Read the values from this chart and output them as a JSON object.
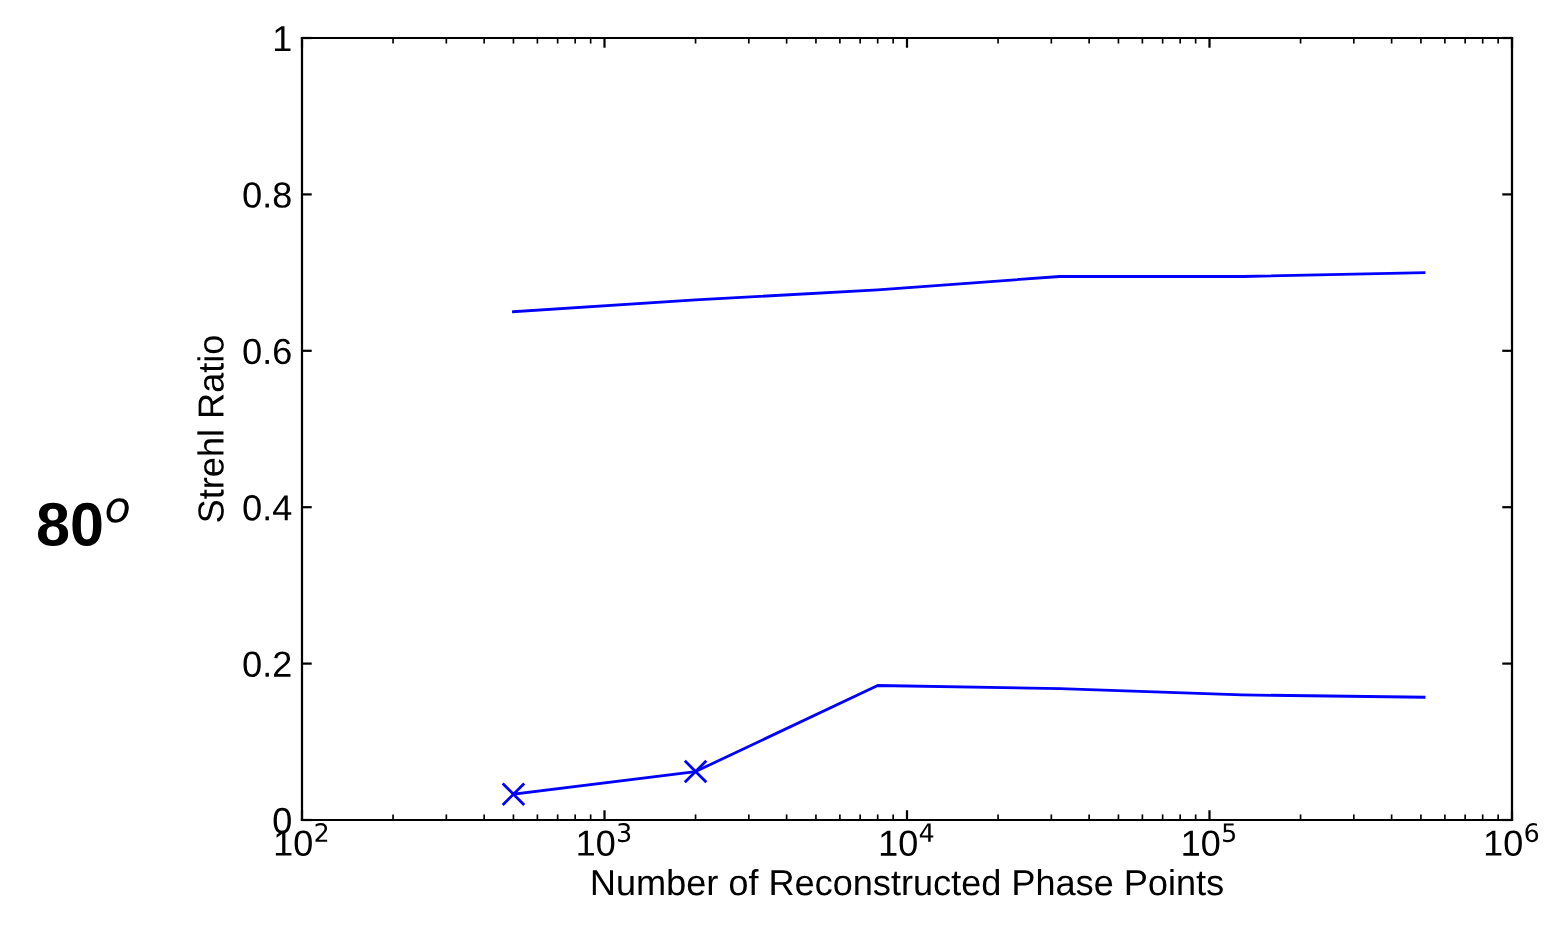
{
  "chart_data": {
    "type": "line",
    "xlabel": "Number of Reconstructed Phase Points",
    "ylabel": "Strehl Ratio",
    "annotations": [
      "80$^{o}$"
    ],
    "log": "x",
    "grid": false,
    "legend": false,
    "xlim": [
      100,
      1000000
    ],
    "xticks": [
      {
        "value": 100,
        "label": "10$^{2}$"
      },
      {
        "value": 1000,
        "label": "10$^{3}$"
      },
      {
        "value": 10000,
        "label": "10$^{4}$"
      },
      {
        "value": 100000,
        "label": "10$^{5}$"
      },
      {
        "value": 1000000,
        "label": "10$^{6}$"
      }
    ],
    "ylim": [
      0,
      1
    ],
    "yticks": [
      0,
      0.2,
      0.4,
      0.6,
      0.8,
      1
    ],
    "series": [
      {
        "color": "#0000ff",
        "x": [
          500,
          2000,
          8000,
          32000,
          128000,
          512000
        ],
        "values": [
          0.65,
          0.665,
          0.678,
          0.695,
          0.695,
          0.7
        ]
      },
      {
        "color": "#0000ff",
        "x": [
          500,
          2000,
          8000,
          32000,
          128000,
          512000
        ],
        "values": [
          0.033,
          0.062,
          0.172,
          0.168,
          0.16,
          0.157
        ]
      },
      {
        "type": "scatter",
        "color": "#0000ff",
        "marker": "cross",
        "x": [
          500,
          2000
        ],
        "values": [
          0.033,
          0.062
        ]
      }
    ]
  }
}
